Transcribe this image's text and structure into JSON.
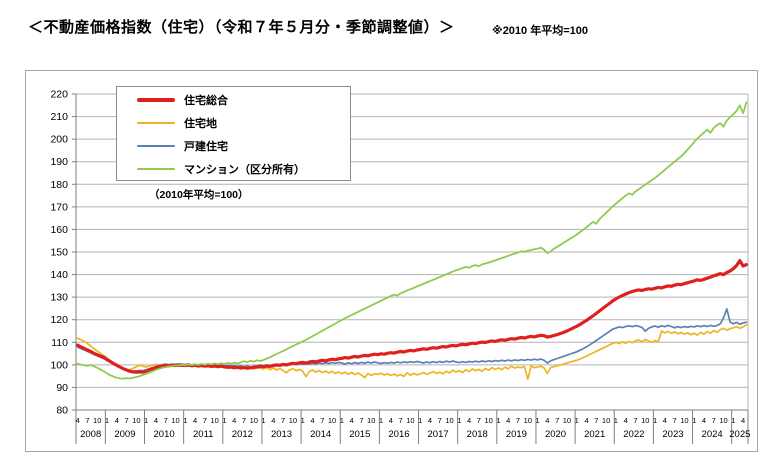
{
  "title": "＜不動産価格指数（住宅）（令和７年５月分・季節調整値）＞",
  "title_note": "※2010 年平均=100",
  "legend": {
    "note": "（2010年平均=100）",
    "items": [
      {
        "label": "住宅総合",
        "color": "#e0201c",
        "thick": true
      },
      {
        "label": "住宅地",
        "color": "#eeb421",
        "thick": false
      },
      {
        "label": "戸建住宅",
        "color": "#5b80b5",
        "thick": false
      },
      {
        "label": "マンション（区分所有）",
        "color": "#8ecb50",
        "thick": false
      }
    ]
  },
  "chart_data": {
    "type": "line",
    "title": "不動産価格指数（住宅）季節調整値",
    "base_note": "2010年平均=100",
    "y_axis": {
      "min": 80,
      "max": 220,
      "step": 10
    },
    "x_axis": {
      "start": {
        "year": 2008,
        "month": 4
      },
      "end": {
        "year": 2025,
        "month": 5
      },
      "tick_every_months": 3,
      "tick_month_labels": [
        "4",
        "7",
        "10",
        "1"
      ],
      "year_labels": [
        "2008",
        "2009",
        "2010",
        "2011",
        "2012",
        "2013",
        "2014",
        "2015",
        "2016",
        "2017",
        "2018",
        "2019",
        "2020",
        "2021",
        "2022",
        "2023",
        "2024",
        "2025"
      ]
    },
    "grid_color": "#b3b3b3",
    "axis_color": "#7f7f7f",
    "series": [
      {
        "name": "住宅地",
        "color": "#eeb421",
        "width": 1.7,
        "values": [
          111.8,
          111.2,
          110.4,
          109.5,
          108.4,
          107.2,
          106.1,
          105.1,
          104.2,
          103.0,
          101.8,
          100.7,
          99.7,
          98.8,
          98.1,
          97.6,
          97.9,
          98.5,
          99.2,
          99.9,
          99.4,
          99.0,
          99.5,
          99.9,
          100.2,
          99.8,
          100.1,
          100.4,
          100.0,
          100.3,
          99.9,
          100.2,
          100.0,
          99.7,
          100.1,
          99.6,
          100.0,
          99.5,
          99.9,
          99.4,
          99.8,
          99.3,
          99.7,
          99.2,
          99.6,
          99.2,
          98.6,
          99.1,
          98.5,
          99.0,
          98.4,
          98.9,
          98.3,
          98.8,
          98.2,
          98.7,
          98.5,
          98.1,
          98.8,
          97.9,
          98.6,
          97.7,
          98.4,
          97.5,
          96.5,
          97.8,
          98.3,
          97.4,
          98.0,
          97.2,
          94.8,
          97.0,
          97.7,
          96.8,
          97.5,
          96.6,
          97.3,
          96.4,
          97.1,
          96.2,
          96.9,
          96.1,
          96.8,
          95.9,
          96.6,
          95.7,
          96.4,
          95.5,
          94.3,
          96.2,
          95.3,
          96.0,
          95.8,
          96.3,
          95.5,
          96.1,
          95.3,
          95.9,
          95.1,
          95.7,
          94.9,
          96.5,
          95.4,
          96.2,
          95.6,
          96.0,
          96.6,
          95.8,
          96.4,
          97.0,
          96.2,
          96.8,
          96.0,
          97.2,
          96.4,
          97.6,
          96.8,
          97.4,
          96.6,
          97.8,
          97.0,
          98.2,
          97.4,
          98.0,
          97.2,
          98.4,
          97.6,
          98.8,
          98.0,
          98.6,
          97.8,
          99.0,
          98.2,
          99.4,
          98.6,
          99.0,
          98.8,
          99.2,
          93.6,
          99.6,
          98.8,
          99.0,
          99.4,
          98.6,
          96.2,
          98.8,
          99.2,
          99.6,
          100.0,
          100.4,
          100.8,
          101.2,
          101.6,
          102.0,
          102.6,
          103.2,
          103.9,
          104.6,
          105.3,
          106.0,
          106.7,
          107.4,
          108.1,
          108.8,
          109.5,
          110.0,
          109.4,
          110.2,
          109.6,
          110.4,
          109.8,
          110.6,
          111.0,
          110.2,
          111.2,
          110.6,
          110.0,
          110.8,
          110.2,
          115.0,
          114.2,
          114.8,
          114.0,
          114.6,
          113.8,
          114.4,
          113.6,
          114.2,
          113.4,
          114.0,
          113.2,
          114.4,
          113.6,
          114.8,
          114.0,
          115.2,
          114.4,
          115.6,
          116.2,
          115.4,
          116.0,
          116.4,
          117.0,
          116.2,
          116.8,
          117.8
        ]
      },
      {
        "name": "戸建住宅",
        "color": "#5b80b5",
        "width": 1.7,
        "values": [
          107.9,
          107.2,
          106.6,
          106.0,
          105.3,
          104.6,
          104.0,
          103.4,
          102.8,
          101.9,
          101.1,
          100.3,
          99.6,
          98.9,
          98.3,
          97.8,
          97.4,
          97.2,
          97.3,
          97.5,
          97.4,
          97.8,
          98.3,
          98.8,
          99.3,
          99.7,
          100.0,
          100.2,
          100.1,
          100.3,
          100.2,
          100.4,
          100.3,
          100.1,
          100.4,
          100.0,
          100.2,
          99.8,
          100.1,
          99.7,
          100.0,
          99.6,
          99.9,
          99.5,
          99.8,
          99.5,
          99.8,
          99.4,
          99.7,
          99.3,
          99.6,
          99.2,
          99.5,
          99.1,
          99.4,
          99.6,
          99.9,
          99.6,
          100.0,
          99.7,
          100.1,
          99.8,
          100.2,
          99.9,
          100.3,
          100.0,
          100.4,
          100.1,
          100.5,
          100.2,
          100.6,
          100.3,
          100.7,
          100.4,
          100.8,
          100.5,
          100.9,
          100.6,
          101.0,
          100.7,
          101.1,
          100.8,
          100.4,
          100.9,
          100.5,
          101.0,
          100.6,
          101.1,
          100.7,
          101.2,
          100.8,
          101.3,
          100.9,
          100.6,
          101.0,
          100.7,
          101.1,
          100.8,
          101.2,
          100.9,
          101.3,
          101.0,
          101.4,
          101.1,
          101.5,
          101.2,
          100.8,
          101.3,
          100.9,
          101.4,
          101.0,
          101.5,
          101.1,
          101.6,
          101.2,
          101.7,
          101.3,
          101.0,
          101.4,
          101.1,
          101.5,
          101.2,
          101.6,
          101.3,
          101.7,
          101.4,
          101.8,
          101.5,
          101.9,
          101.6,
          102.0,
          101.7,
          102.1,
          101.8,
          102.2,
          101.9,
          102.3,
          102.0,
          102.4,
          102.1,
          102.5,
          102.2,
          102.6,
          102.0,
          100.8,
          101.8,
          102.3,
          102.8,
          103.3,
          103.8,
          104.3,
          104.8,
          105.3,
          105.8,
          106.5,
          107.2,
          108.0,
          108.9,
          109.8,
          110.8,
          111.8,
          112.8,
          113.8,
          114.8,
          115.8,
          116.3,
          116.8,
          116.5,
          117.0,
          117.3,
          116.9,
          117.4,
          117.1,
          116.6,
          114.9,
          116.2,
          116.8,
          117.2,
          116.7,
          117.3,
          116.9,
          117.5,
          117.0,
          116.4,
          116.9,
          116.5,
          117.0,
          116.6,
          117.1,
          116.8,
          117.3,
          116.9,
          117.4,
          117.0,
          117.5,
          117.1,
          117.4,
          118.2,
          120.8,
          124.8,
          119.0,
          118.2,
          118.8,
          118.0,
          118.6,
          118.9
        ]
      },
      {
        "name": "住宅総合",
        "color": "#e0201c",
        "width": 3.2,
        "values": [
          108.7,
          107.9,
          107.3,
          106.6,
          105.9,
          105.1,
          104.5,
          103.9,
          103.3,
          102.4,
          101.5,
          100.6,
          99.8,
          99.0,
          98.3,
          97.7,
          97.2,
          96.9,
          96.8,
          96.9,
          96.8,
          97.2,
          97.8,
          98.3,
          98.8,
          99.2,
          99.5,
          99.7,
          99.6,
          99.8,
          99.7,
          99.9,
          99.8,
          99.7,
          99.9,
          99.6,
          99.8,
          99.5,
          99.7,
          99.4,
          99.6,
          99.3,
          99.5,
          99.2,
          99.4,
          99.1,
          98.9,
          99.0,
          98.7,
          98.9,
          98.6,
          98.8,
          98.5,
          98.7,
          98.9,
          99.1,
          99.3,
          99.2,
          99.5,
          99.3,
          99.7,
          100.0,
          99.8,
          100.2,
          100.0,
          100.4,
          100.7,
          100.5,
          100.9,
          101.1,
          100.8,
          101.2,
          101.5,
          101.3,
          101.7,
          102.0,
          101.8,
          102.2,
          102.5,
          102.3,
          102.7,
          102.9,
          103.2,
          103.0,
          103.4,
          103.7,
          103.5,
          103.9,
          104.2,
          104.0,
          104.4,
          104.7,
          104.5,
          104.9,
          104.7,
          105.1,
          105.4,
          105.2,
          105.6,
          105.9,
          105.7,
          106.1,
          106.4,
          106.2,
          106.6,
          106.8,
          107.1,
          106.9,
          107.3,
          107.6,
          107.4,
          107.8,
          108.1,
          107.9,
          108.3,
          108.6,
          108.4,
          108.8,
          109.1,
          108.9,
          109.3,
          109.6,
          109.4,
          109.8,
          110.1,
          109.9,
          110.3,
          110.6,
          110.4,
          110.8,
          111.1,
          110.9,
          111.3,
          111.6,
          111.4,
          111.8,
          112.1,
          111.9,
          112.3,
          112.6,
          112.4,
          112.8,
          113.1,
          112.9,
          112.3,
          112.6,
          113.0,
          113.4,
          113.9,
          114.4,
          115.0,
          115.7,
          116.4,
          117.1,
          117.9,
          118.8,
          119.7,
          120.7,
          121.7,
          122.8,
          123.9,
          125.0,
          126.1,
          127.2,
          128.3,
          129.2,
          130.0,
          130.7,
          131.4,
          132.0,
          132.5,
          132.9,
          133.2,
          133.0,
          133.4,
          133.7,
          133.5,
          133.9,
          134.3,
          134.1,
          134.6,
          135.0,
          134.8,
          135.3,
          135.7,
          135.5,
          136.0,
          136.4,
          136.8,
          137.2,
          137.7,
          137.4,
          137.9,
          138.4,
          138.9,
          139.4,
          139.9,
          140.4,
          140.0,
          140.9,
          141.6,
          142.6,
          144.0,
          146.2,
          143.8,
          144.4
        ]
      },
      {
        "name": "マンション（区分所有）",
        "color": "#8ecb50",
        "width": 1.8,
        "values": [
          100.5,
          100.1,
          99.8,
          99.6,
          99.9,
          99.4,
          98.7,
          97.9,
          97.1,
          96.2,
          95.4,
          94.8,
          94.3,
          94.0,
          93.9,
          94.1,
          94.0,
          94.3,
          94.6,
          95.0,
          95.5,
          96.0,
          96.6,
          97.2,
          97.8,
          98.3,
          98.7,
          99.0,
          99.3,
          99.5,
          99.7,
          99.8,
          100.0,
          99.8,
          100.2,
          99.9,
          100.3,
          100.0,
          100.4,
          100.1,
          100.5,
          100.2,
          100.6,
          100.3,
          100.7,
          100.4,
          100.9,
          100.5,
          101.0,
          100.6,
          101.1,
          101.6,
          101.2,
          101.8,
          101.4,
          102.0,
          101.7,
          102.2,
          102.8,
          103.4,
          104.1,
          104.8,
          105.5,
          106.2,
          106.9,
          107.6,
          108.3,
          109.0,
          109.7,
          110.4,
          111.1,
          111.9,
          112.7,
          113.5,
          114.3,
          115.1,
          115.9,
          116.7,
          117.5,
          118.3,
          119.1,
          119.9,
          120.7,
          121.4,
          122.1,
          122.8,
          123.5,
          124.2,
          124.9,
          125.6,
          126.3,
          127.0,
          127.7,
          128.4,
          129.1,
          129.8,
          130.5,
          131.1,
          130.7,
          131.7,
          132.3,
          132.9,
          133.5,
          134.1,
          134.7,
          135.3,
          135.9,
          136.5,
          137.1,
          137.7,
          138.3,
          138.9,
          139.5,
          140.1,
          140.7,
          141.3,
          141.9,
          142.4,
          142.9,
          143.4,
          143.0,
          143.8,
          144.2,
          143.7,
          144.5,
          144.9,
          145.3,
          145.8,
          146.3,
          146.8,
          147.3,
          147.8,
          148.3,
          148.8,
          149.3,
          149.8,
          150.3,
          150.0,
          150.6,
          150.9,
          151.2,
          151.5,
          151.9,
          151.0,
          149.5,
          150.2,
          151.4,
          152.3,
          153.2,
          154.1,
          155.0,
          155.9,
          156.8,
          157.7,
          158.8,
          159.9,
          161.0,
          162.2,
          163.4,
          162.5,
          164.6,
          166.0,
          167.4,
          168.8,
          170.2,
          171.4,
          172.6,
          173.8,
          175.0,
          176.0,
          175.4,
          176.8,
          177.8,
          178.8,
          179.8,
          180.8,
          181.8,
          182.8,
          184.0,
          185.2,
          186.4,
          187.6,
          188.8,
          190.0,
          191.2,
          192.4,
          193.8,
          195.4,
          197.0,
          198.8,
          200.3,
          201.6,
          203.0,
          204.2,
          202.8,
          205.0,
          206.2,
          207.0,
          205.5,
          208.2,
          209.8,
          211.0,
          212.5,
          215.0,
          211.5,
          216.3
        ]
      }
    ]
  }
}
